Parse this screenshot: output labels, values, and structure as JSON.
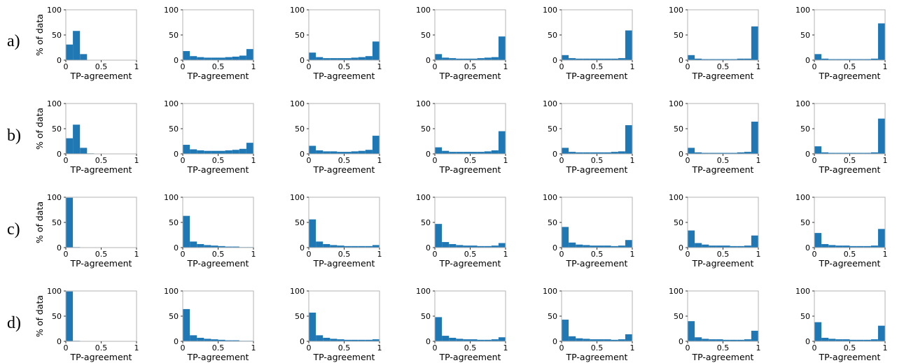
{
  "figure": {
    "row_labels": [
      "a)",
      "b)",
      "c)",
      "d)"
    ],
    "bar_color": "#1f77b4"
  },
  "chart_data": [
    {
      "type": "bar",
      "row": "a)",
      "col": 1,
      "xlabel": "TP-agreement",
      "ylabel": "% of data",
      "xlim": [
        0,
        1
      ],
      "ylim": [
        0,
        100
      ],
      "xticks": [
        "0",
        "0.5",
        "1"
      ],
      "yticks": [
        "0",
        "50",
        "100"
      ],
      "bin_width": 0.1,
      "values": [
        31,
        58,
        12,
        0,
        0,
        0,
        0,
        0,
        0,
        0
      ]
    },
    {
      "type": "bar",
      "row": "a)",
      "col": 2,
      "xlabel": "TP-agreement",
      "ylabel": "",
      "xlim": [
        0,
        1
      ],
      "ylim": [
        0,
        100
      ],
      "xticks": [
        "0",
        "0.5",
        "1"
      ],
      "yticks": [
        "0",
        "50",
        "100"
      ],
      "bin_width": 0.1,
      "values": [
        18,
        8,
        6,
        5,
        5,
        5,
        6,
        7,
        9,
        22
      ]
    },
    {
      "type": "bar",
      "row": "a)",
      "col": 3,
      "xlabel": "TP-agreement",
      "ylabel": "",
      "xlim": [
        0,
        1
      ],
      "ylim": [
        0,
        100
      ],
      "xticks": [
        "0",
        "0.5",
        "1"
      ],
      "yticks": [
        "0",
        "50",
        "100"
      ],
      "bin_width": 0.1,
      "values": [
        15,
        6,
        4,
        4,
        4,
        4,
        5,
        6,
        8,
        37
      ]
    },
    {
      "type": "bar",
      "row": "a)",
      "col": 4,
      "xlabel": "TP-agreement",
      "ylabel": "",
      "xlim": [
        0,
        1
      ],
      "ylim": [
        0,
        100
      ],
      "xticks": [
        "0",
        "0.5",
        "1"
      ],
      "yticks": [
        "0",
        "50",
        "100"
      ],
      "bin_width": 0.1,
      "values": [
        12,
        5,
        4,
        3,
        3,
        3,
        4,
        5,
        6,
        47
      ]
    },
    {
      "type": "bar",
      "row": "a)",
      "col": 5,
      "xlabel": "TP-agreement",
      "ylabel": "",
      "xlim": [
        0,
        1
      ],
      "ylim": [
        0,
        100
      ],
      "xticks": [
        "0",
        "0.5",
        "1"
      ],
      "yticks": [
        "0",
        "50",
        "100"
      ],
      "bin_width": 0.1,
      "values": [
        10,
        4,
        3,
        3,
        3,
        3,
        3,
        3,
        4,
        59
      ]
    },
    {
      "type": "bar",
      "row": "a)",
      "col": 6,
      "xlabel": "TP-agreement",
      "ylabel": "",
      "xlim": [
        0,
        1
      ],
      "ylim": [
        0,
        100
      ],
      "xticks": [
        "0",
        "0.5",
        "1"
      ],
      "yticks": [
        "0",
        "50",
        "100"
      ],
      "bin_width": 0.1,
      "values": [
        10,
        3,
        2,
        2,
        2,
        2,
        2,
        3,
        3,
        67
      ]
    },
    {
      "type": "bar",
      "row": "a)",
      "col": 7,
      "xlabel": "TP-agreement",
      "ylabel": "",
      "xlim": [
        0,
        1
      ],
      "ylim": [
        0,
        100
      ],
      "xticks": [
        "0",
        "0.5",
        "1"
      ],
      "yticks": [
        "0",
        "50",
        "100"
      ],
      "bin_width": 0.1,
      "values": [
        12,
        3,
        2,
        2,
        2,
        2,
        2,
        2,
        3,
        73
      ]
    },
    {
      "type": "bar",
      "row": "b)",
      "col": 1,
      "xlabel": "TP-agreement",
      "ylabel": "% of data",
      "xlim": [
        0,
        1
      ],
      "ylim": [
        0,
        100
      ],
      "xticks": [
        "0",
        "0.5",
        "1"
      ],
      "yticks": [
        "0",
        "50",
        "100"
      ],
      "bin_width": 0.1,
      "values": [
        31,
        58,
        12,
        1,
        0,
        0,
        0,
        0,
        0,
        0
      ]
    },
    {
      "type": "bar",
      "row": "b)",
      "col": 2,
      "xlabel": "TP-agreement",
      "ylabel": "",
      "xlim": [
        0,
        1
      ],
      "ylim": [
        0,
        100
      ],
      "xticks": [
        "0",
        "0.5",
        "1"
      ],
      "yticks": [
        "0",
        "50",
        "100"
      ],
      "bin_width": 0.1,
      "values": [
        18,
        9,
        7,
        6,
        6,
        6,
        7,
        8,
        10,
        22
      ]
    },
    {
      "type": "bar",
      "row": "b)",
      "col": 3,
      "xlabel": "TP-agreement",
      "ylabel": "",
      "xlim": [
        0,
        1
      ],
      "ylim": [
        0,
        100
      ],
      "xticks": [
        "0",
        "0.5",
        "1"
      ],
      "yticks": [
        "0",
        "50",
        "100"
      ],
      "bin_width": 0.1,
      "values": [
        16,
        7,
        5,
        5,
        4,
        4,
        5,
        6,
        8,
        36
      ]
    },
    {
      "type": "bar",
      "row": "b)",
      "col": 4,
      "xlabel": "TP-agreement",
      "ylabel": "",
      "xlim": [
        0,
        1
      ],
      "ylim": [
        0,
        100
      ],
      "xticks": [
        "0",
        "0.5",
        "1"
      ],
      "yticks": [
        "0",
        "50",
        "100"
      ],
      "bin_width": 0.1,
      "values": [
        13,
        6,
        4,
        4,
        4,
        4,
        4,
        5,
        7,
        45
      ]
    },
    {
      "type": "bar",
      "row": "b)",
      "col": 5,
      "xlabel": "TP-agreement",
      "ylabel": "",
      "xlim": [
        0,
        1
      ],
      "ylim": [
        0,
        100
      ],
      "xticks": [
        "0",
        "0.5",
        "1"
      ],
      "yticks": [
        "0",
        "50",
        "100"
      ],
      "bin_width": 0.1,
      "values": [
        12,
        4,
        3,
        3,
        3,
        3,
        3,
        4,
        5,
        57
      ]
    },
    {
      "type": "bar",
      "row": "b)",
      "col": 6,
      "xlabel": "TP-agreement",
      "ylabel": "",
      "xlim": [
        0,
        1
      ],
      "ylim": [
        0,
        100
      ],
      "xticks": [
        "0",
        "0.5",
        "1"
      ],
      "yticks": [
        "0",
        "50",
        "100"
      ],
      "bin_width": 0.1,
      "values": [
        12,
        3,
        2,
        2,
        2,
        2,
        2,
        3,
        4,
        64
      ]
    },
    {
      "type": "bar",
      "row": "b)",
      "col": 7,
      "xlabel": "TP-agreement",
      "ylabel": "",
      "xlim": [
        0,
        1
      ],
      "ylim": [
        0,
        100
      ],
      "xticks": [
        "0",
        "0.5",
        "1"
      ],
      "yticks": [
        "0",
        "50",
        "100"
      ],
      "bin_width": 0.1,
      "values": [
        15,
        3,
        2,
        2,
        2,
        2,
        2,
        2,
        3,
        70
      ]
    },
    {
      "type": "bar",
      "row": "c)",
      "col": 1,
      "xlabel": "TP-agreement",
      "ylabel": "% of data",
      "xlim": [
        0,
        1
      ],
      "ylim": [
        0,
        100
      ],
      "xticks": [
        "0",
        "0.5",
        "1"
      ],
      "yticks": [
        "0",
        "50",
        "100"
      ],
      "bin_width": 0.1,
      "values": [
        99,
        1,
        0,
        0,
        0,
        0,
        0,
        0,
        0,
        0
      ]
    },
    {
      "type": "bar",
      "row": "c)",
      "col": 2,
      "xlabel": "TP-agreement",
      "ylabel": "",
      "xlim": [
        0,
        1
      ],
      "ylim": [
        0,
        100
      ],
      "xticks": [
        "0",
        "0.5",
        "1"
      ],
      "yticks": [
        "0",
        "50",
        "100"
      ],
      "bin_width": 0.1,
      "values": [
        63,
        12,
        7,
        5,
        4,
        3,
        2,
        2,
        1,
        1
      ]
    },
    {
      "type": "bar",
      "row": "c)",
      "col": 3,
      "xlabel": "TP-agreement",
      "ylabel": "",
      "xlim": [
        0,
        1
      ],
      "ylim": [
        0,
        100
      ],
      "xticks": [
        "0",
        "0.5",
        "1"
      ],
      "yticks": [
        "0",
        "50",
        "100"
      ],
      "bin_width": 0.1,
      "values": [
        56,
        12,
        7,
        5,
        4,
        3,
        3,
        3,
        3,
        5
      ]
    },
    {
      "type": "bar",
      "row": "c)",
      "col": 4,
      "xlabel": "TP-agreement",
      "ylabel": "",
      "xlim": [
        0,
        1
      ],
      "ylim": [
        0,
        100
      ],
      "xticks": [
        "0",
        "0.5",
        "1"
      ],
      "yticks": [
        "0",
        "50",
        "100"
      ],
      "bin_width": 0.1,
      "values": [
        47,
        11,
        7,
        5,
        4,
        4,
        3,
        3,
        4,
        9
      ]
    },
    {
      "type": "bar",
      "row": "c)",
      "col": 5,
      "xlabel": "TP-agreement",
      "ylabel": "",
      "xlim": [
        0,
        1
      ],
      "ylim": [
        0,
        100
      ],
      "xticks": [
        "0",
        "0.5",
        "1"
      ],
      "yticks": [
        "0",
        "50",
        "100"
      ],
      "bin_width": 0.1,
      "values": [
        41,
        10,
        6,
        5,
        4,
        4,
        4,
        3,
        4,
        15
      ]
    },
    {
      "type": "bar",
      "row": "c)",
      "col": 6,
      "xlabel": "TP-agreement",
      "ylabel": "",
      "xlim": [
        0,
        1
      ],
      "ylim": [
        0,
        100
      ],
      "xticks": [
        "0",
        "0.5",
        "1"
      ],
      "yticks": [
        "0",
        "50",
        "100"
      ],
      "bin_width": 0.1,
      "values": [
        34,
        9,
        6,
        4,
        4,
        4,
        3,
        3,
        4,
        24
      ]
    },
    {
      "type": "bar",
      "row": "c)",
      "col": 7,
      "xlabel": "TP-agreement",
      "ylabel": "",
      "xlim": [
        0,
        1
      ],
      "ylim": [
        0,
        100
      ],
      "xticks": [
        "0",
        "0.5",
        "1"
      ],
      "yticks": [
        "0",
        "50",
        "100"
      ],
      "bin_width": 0.1,
      "values": [
        29,
        7,
        5,
        4,
        4,
        3,
        3,
        3,
        4,
        37
      ]
    },
    {
      "type": "bar",
      "row": "d)",
      "col": 1,
      "xlabel": "TP-agreement",
      "ylabel": "% of data",
      "xlim": [
        0,
        1
      ],
      "ylim": [
        0,
        100
      ],
      "xticks": [
        "0",
        "0.5",
        "1"
      ],
      "yticks": [
        "0",
        "50",
        "100"
      ],
      "bin_width": 0.1,
      "values": [
        99,
        1,
        0,
        0,
        0,
        0,
        0,
        0,
        0,
        0
      ]
    },
    {
      "type": "bar",
      "row": "d)",
      "col": 2,
      "xlabel": "TP-agreement",
      "ylabel": "",
      "xlim": [
        0,
        1
      ],
      "ylim": [
        0,
        100
      ],
      "xticks": [
        "0",
        "0.5",
        "1"
      ],
      "yticks": [
        "0",
        "50",
        "100"
      ],
      "bin_width": 0.1,
      "values": [
        64,
        12,
        7,
        5,
        4,
        3,
        2,
        2,
        1,
        1
      ]
    },
    {
      "type": "bar",
      "row": "d)",
      "col": 3,
      "xlabel": "TP-agreement",
      "ylabel": "",
      "xlim": [
        0,
        1
      ],
      "ylim": [
        0,
        100
      ],
      "xticks": [
        "0",
        "0.5",
        "1"
      ],
      "yticks": [
        "0",
        "50",
        "100"
      ],
      "bin_width": 0.1,
      "values": [
        57,
        12,
        7,
        5,
        4,
        3,
        3,
        3,
        3,
        4
      ]
    },
    {
      "type": "bar",
      "row": "d)",
      "col": 4,
      "xlabel": "TP-agreement",
      "ylabel": "",
      "xlim": [
        0,
        1
      ],
      "ylim": [
        0,
        100
      ],
      "xticks": [
        "0",
        "0.5",
        "1"
      ],
      "yticks": [
        "0",
        "50",
        "100"
      ],
      "bin_width": 0.1,
      "values": [
        48,
        11,
        7,
        5,
        4,
        4,
        3,
        3,
        4,
        8
      ]
    },
    {
      "type": "bar",
      "row": "d)",
      "col": 5,
      "xlabel": "TP-agreement",
      "ylabel": "",
      "xlim": [
        0,
        1
      ],
      "ylim": [
        0,
        100
      ],
      "xticks": [
        "0",
        "0.5",
        "1"
      ],
      "yticks": [
        "0",
        "50",
        "100"
      ],
      "bin_width": 0.1,
      "values": [
        43,
        10,
        6,
        5,
        4,
        4,
        4,
        3,
        4,
        14
      ]
    },
    {
      "type": "bar",
      "row": "d)",
      "col": 6,
      "xlabel": "TP-agreement",
      "ylabel": "",
      "xlim": [
        0,
        1
      ],
      "ylim": [
        0,
        100
      ],
      "xticks": [
        "0",
        "0.5",
        "1"
      ],
      "yticks": [
        "0",
        "50",
        "100"
      ],
      "bin_width": 0.1,
      "values": [
        40,
        8,
        5,
        4,
        4,
        3,
        3,
        3,
        4,
        21
      ]
    },
    {
      "type": "bar",
      "row": "d)",
      "col": 7,
      "xlabel": "TP-agreement",
      "ylabel": "",
      "xlim": [
        0,
        1
      ],
      "ylim": [
        0,
        100
      ],
      "xticks": [
        "0",
        "0.5",
        "1"
      ],
      "yticks": [
        "0",
        "50",
        "100"
      ],
      "bin_width": 0.1,
      "values": [
        38,
        7,
        5,
        4,
        4,
        3,
        3,
        3,
        4,
        31
      ]
    }
  ]
}
